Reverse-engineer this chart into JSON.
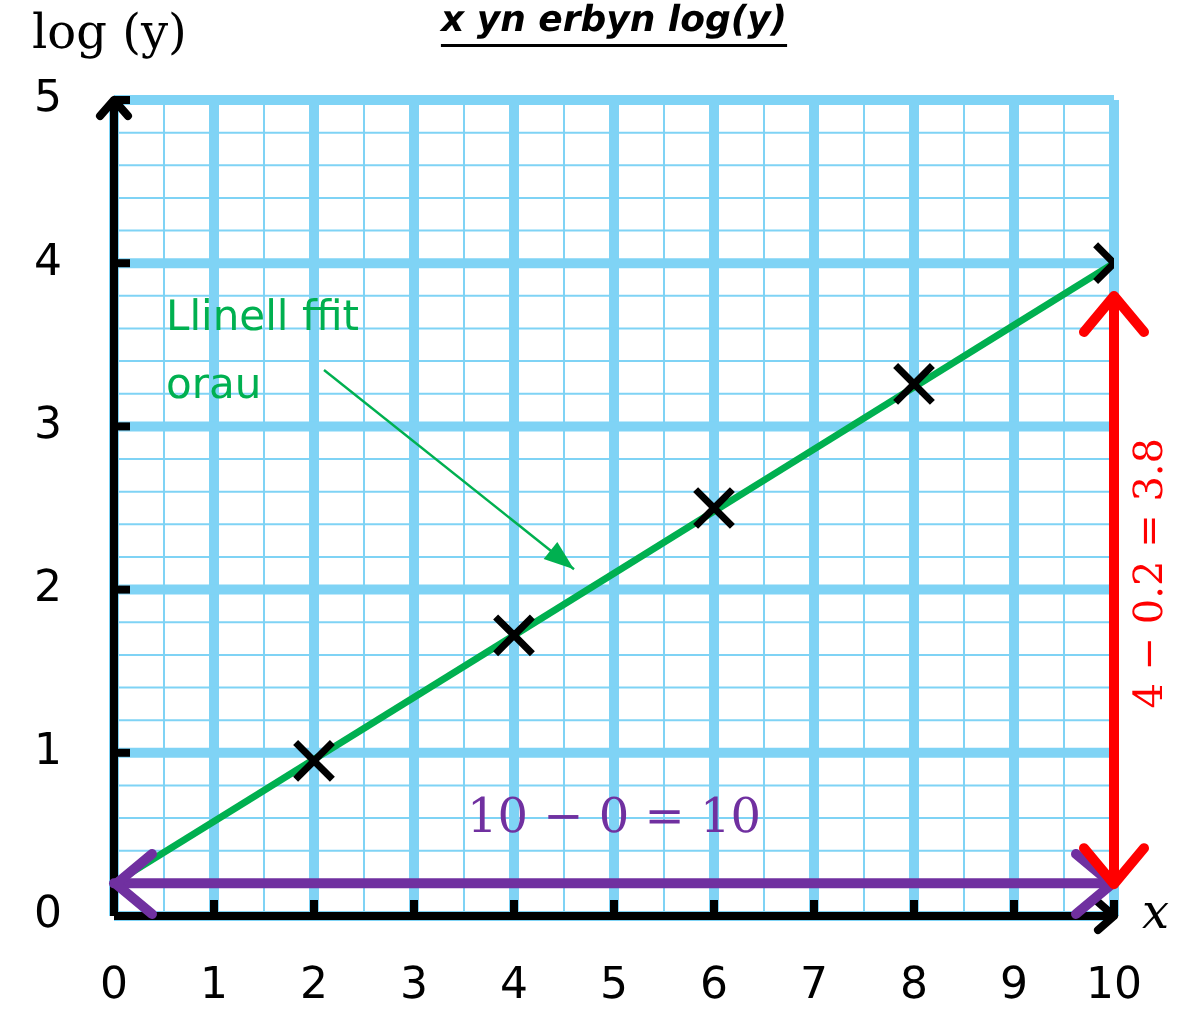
{
  "chart_data": {
    "type": "scatter",
    "title": "x yn erbyn log(y)",
    "xlabel": "x",
    "ylabel": "log (y)",
    "xlim": [
      0,
      10
    ],
    "ylim": [
      0,
      5
    ],
    "xticks": [
      0,
      {
        "value": 0.5,
        "label": null
      },
      1,
      {
        "value": 1.5,
        "label": null
      },
      2,
      {
        "value": 2.5,
        "label": null
      },
      3,
      {
        "value": 3.5,
        "label": null
      },
      4,
      {
        "value": 4.5,
        "label": null
      },
      5,
      {
        "value": 5.5,
        "label": null
      },
      6,
      {
        "value": 6.5,
        "label": null
      },
      7,
      {
        "value": 7.5,
        "label": null
      },
      8,
      {
        "value": 8.5,
        "label": null
      },
      9,
      {
        "value": 9.5,
        "label": null
      },
      10
    ],
    "yticks": [
      0,
      {
        "value": 0.2,
        "label": null
      },
      {
        "value": 0.4,
        "label": null
      },
      {
        "value": 0.6,
        "label": null
      },
      {
        "value": 0.8,
        "label": null
      },
      1,
      {
        "value": 1.2,
        "label": null
      },
      {
        "value": 1.4,
        "label": null
      },
      {
        "value": 1.6,
        "label": null
      },
      {
        "value": 1.8,
        "label": null
      },
      2,
      {
        "value": 2.2,
        "label": null
      },
      {
        "value": 2.4,
        "label": null
      },
      {
        "value": 2.6,
        "label": null
      },
      {
        "value": 2.8,
        "label": null
      },
      3,
      {
        "value": 3.2,
        "label": null
      },
      {
        "value": 3.4,
        "label": null
      },
      {
        "value": 3.6,
        "label": null
      },
      {
        "value": 3.8,
        "label": null
      },
      4,
      {
        "value": 4.2,
        "label": null
      },
      {
        "value": 4.4,
        "label": null
      },
      {
        "value": 4.6,
        "label": null
      },
      {
        "value": 4.8,
        "label": null
      },
      5
    ],
    "grid": true,
    "series": [
      {
        "color": "#000000",
        "marker": "cross",
        "x": [
          2,
          4,
          6,
          8,
          10
        ],
        "values": [
          0.95,
          1.72,
          2.5,
          3.26,
          4.0
        ]
      },
      {
        "type": "line",
        "color": "#00b050",
        "marker": "none",
        "x": [
          0,
          10
        ],
        "values": [
          0.2,
          4.0
        ]
      }
    ],
    "ref_lines": [
      {
        "axis": "y",
        "value": 0.2,
        "label": "10 − 0 = 10",
        "color": "#7030a0"
      }
    ],
    "annotations": [
      "Llinell ffit orau",
      "4 − 0.2 = 3.8"
    ]
  }
}
